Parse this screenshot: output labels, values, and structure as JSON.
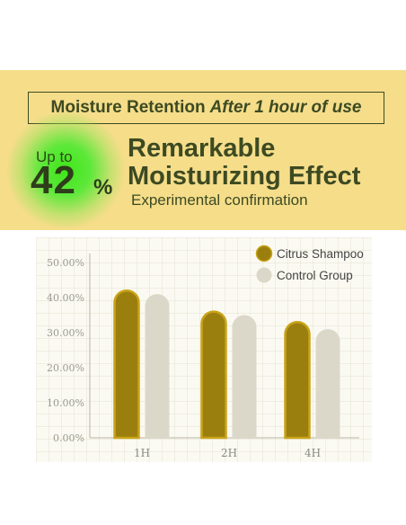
{
  "header": {
    "title_main": "Moisture Retention",
    "title_accent": "After 1 hour of use",
    "up_to": "Up to",
    "big_number": "42",
    "percent_sign": "%",
    "headline_line1": "Remarkable",
    "headline_line2": "Moisturizing Effect",
    "subheadline": "Experimental confirmation"
  },
  "colors": {
    "banner": "#f5dd8a",
    "dark_text": "#3d4a22",
    "citrus_bar": "#9b7f0e",
    "citrus_bar_edge": "#c9a318",
    "control_bar": "#dcd8c9",
    "glow": "#3fe61a"
  },
  "chart_data": {
    "type": "bar",
    "categories": [
      "1H",
      "2H",
      "4H"
    ],
    "series": [
      {
        "name": "Citrus Shampoo",
        "values": [
          42,
          36,
          33
        ],
        "color": "#9b7f0e"
      },
      {
        "name": "Control Group",
        "values": [
          41,
          35,
          31
        ],
        "color": "#dcd8c9"
      }
    ],
    "ylim": [
      0,
      50
    ],
    "yticks": [
      "0.00%",
      "10.00%",
      "20.00%",
      "30.00%",
      "40.00%",
      "50.00%"
    ],
    "ytick_values": [
      0,
      10,
      20,
      30,
      40,
      50
    ],
    "legend_position": "top-right",
    "grid": true
  }
}
